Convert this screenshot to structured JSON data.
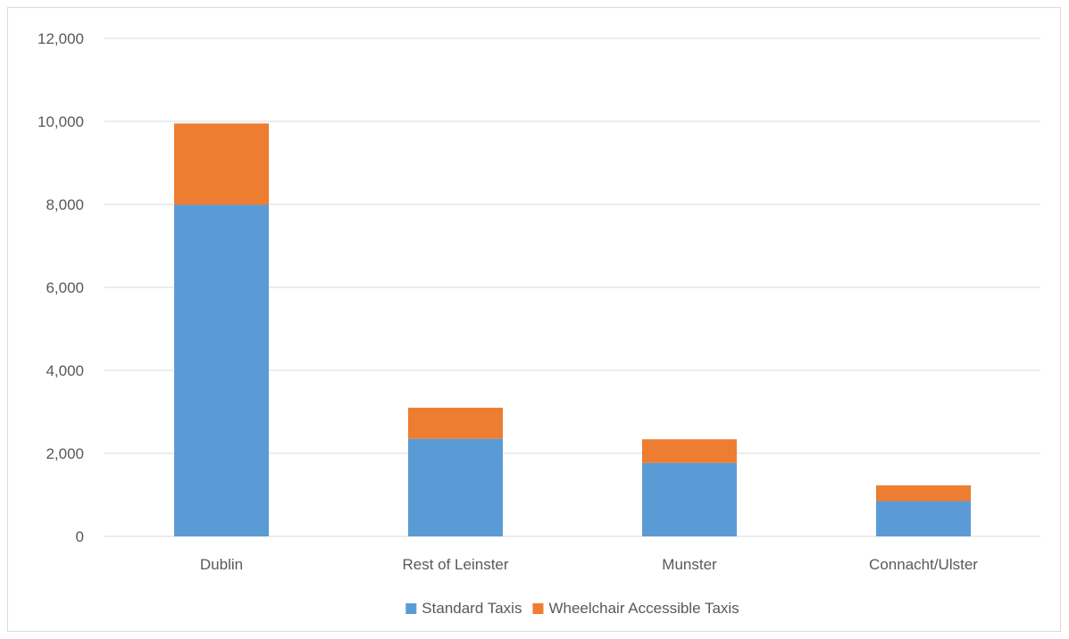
{
  "chart_data": {
    "type": "bar",
    "stacked": true,
    "title": "",
    "xlabel": "",
    "ylabel": "",
    "categories": [
      "Dublin",
      "Rest of Leinster",
      "Munster",
      "Connacht/Ulster"
    ],
    "series": [
      {
        "name": "Standard Taxis",
        "values": [
          7990,
          2350,
          1770,
          850
        ],
        "color": "#5b9bd5"
      },
      {
        "name": "Wheelchair Accessible Taxis",
        "values": [
          1960,
          750,
          570,
          380
        ],
        "color": "#ed7d31"
      }
    ],
    "ylim": [
      0,
      12000
    ],
    "yticks": [
      "0",
      "2,000",
      "4,000",
      "6,000",
      "8,000",
      "10,000",
      "12,000"
    ],
    "ytick_values": [
      0,
      2000,
      4000,
      6000,
      8000,
      10000,
      12000
    ],
    "grid": true,
    "legend_position": "bottom"
  }
}
